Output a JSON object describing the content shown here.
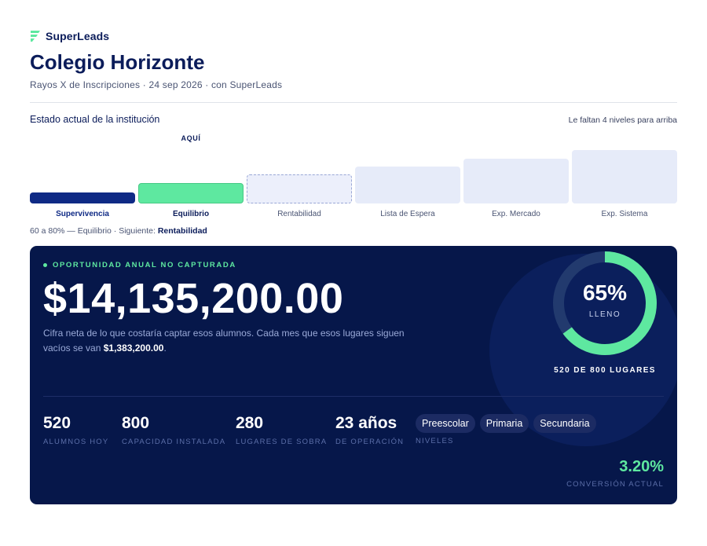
{
  "brand": {
    "name": "SuperLeads",
    "logo_icon": "superleads-logo-icon",
    "color": "#5ee8a0"
  },
  "header": {
    "title": "Colegio Horizonte",
    "subtitle": "Rayos X de Inscripciones · 24 sep 2026 · con SuperLeads"
  },
  "status": {
    "title": "Estado actual de la institución",
    "note": "Le faltan 4 niveles para arriba",
    "here_label": "AQUÍ",
    "levels": [
      {
        "label": "Supervivencia",
        "state": "past"
      },
      {
        "label": "Equilibrio",
        "state": "current"
      },
      {
        "label": "Rentabilidad",
        "state": "next"
      },
      {
        "label": "Lista de Espera",
        "state": "future"
      },
      {
        "label": "Exp. Mercado",
        "state": "future"
      },
      {
        "label": "Exp. Sistema",
        "state": "future"
      }
    ],
    "range_text": "60 a 80% — Equilibrio · Siguiente: ",
    "range_next": "Rentabilidad"
  },
  "card": {
    "eyebrow": "OPORTUNIDAD ANUAL NO CAPTURADA",
    "amount": "$14,135,200.00",
    "description": "Cifra neta de lo que costaría captar esos alumnos. Cada mes que esos lugares siguen vacíos se van ",
    "monthly_amount": "$1,383,200.00",
    "description_end": ".",
    "fill": {
      "fraction": 0.65,
      "percent_label": "65%",
      "caption": "LLENO",
      "seats": "520 DE 800 LUGARES"
    },
    "stats": [
      {
        "value": "520",
        "label": "ALUMNOS HOY"
      },
      {
        "value": "800",
        "label": "CAPACIDAD INSTALADA"
      },
      {
        "value": "280",
        "label": "LUGARES DE SOBRA"
      },
      {
        "value": "23 años",
        "label": "DE OPERACIÓN"
      }
    ],
    "niveles": {
      "chips": [
        "Preescolar",
        "Primaria",
        "Secundaria"
      ],
      "label": "NIVELES"
    },
    "conversion": {
      "value": "3.20%",
      "label": "CONVERSIÓN ACTUAL"
    }
  },
  "colors": {
    "navy": "#06174a",
    "accent_green": "#5ee8a0",
    "pale_level": "#e6ebf9",
    "dark_level": "#0f2a85"
  }
}
